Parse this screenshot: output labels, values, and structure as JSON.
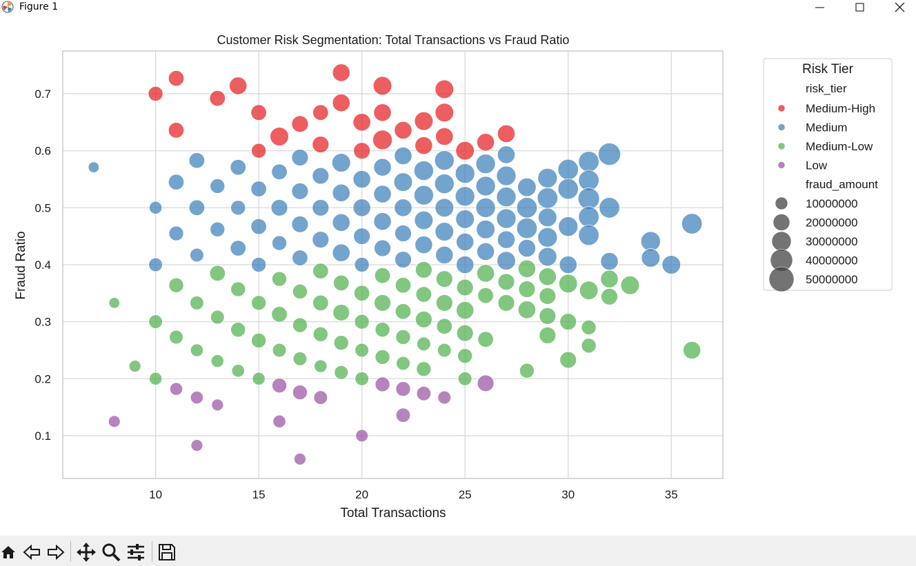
{
  "window": {
    "title": "Figure 1"
  },
  "toolbar": {
    "icons": [
      "home-icon",
      "back-icon",
      "forward-icon",
      "pan-icon",
      "zoom-icon",
      "configure-subplots-icon",
      "save-icon"
    ]
  },
  "chart_data": {
    "type": "scatter",
    "title": "Customer Risk Segmentation: Total Transactions vs Fraud Ratio",
    "xlabel": "Total Transactions",
    "ylabel": "Fraud Ratio",
    "xlim": [
      5.5,
      37.5
    ],
    "ylim": [
      0.025,
      0.775
    ],
    "xticks": [
      10,
      15,
      20,
      25,
      30,
      35
    ],
    "yticks": [
      0.1,
      0.2,
      0.3,
      0.4,
      0.5,
      0.6,
      0.7
    ],
    "grid": true,
    "legend": {
      "title": "Risk Tier",
      "placement": "outside-right",
      "hue_title": "risk_tier",
      "size_title": "fraud_amount",
      "size_entries": [
        "10000000",
        "20000000",
        "30000000",
        "40000000",
        "50000000"
      ]
    },
    "series": [
      {
        "name": "Medium-High",
        "color": "#e41a1c",
        "points": [
          [
            10,
            0.7,
            0.4
          ],
          [
            11,
            0.727,
            0.45
          ],
          [
            11,
            0.636,
            0.45
          ],
          [
            13,
            0.692,
            0.45
          ],
          [
            14,
            0.714,
            0.55
          ],
          [
            15,
            0.667,
            0.45
          ],
          [
            15,
            0.6,
            0.4
          ],
          [
            16,
            0.625,
            0.6
          ],
          [
            17,
            0.647,
            0.5
          ],
          [
            18,
            0.667,
            0.45
          ],
          [
            18,
            0.611,
            0.5
          ],
          [
            19,
            0.737,
            0.55
          ],
          [
            19,
            0.684,
            0.55
          ],
          [
            20,
            0.65,
            0.55
          ],
          [
            20,
            0.6,
            0.5
          ],
          [
            21,
            0.714,
            0.6
          ],
          [
            21,
            0.667,
            0.55
          ],
          [
            21,
            0.619,
            0.65
          ],
          [
            22,
            0.636,
            0.55
          ],
          [
            23,
            0.652,
            0.6
          ],
          [
            23,
            0.609,
            0.55
          ],
          [
            24,
            0.708,
            0.6
          ],
          [
            24,
            0.667,
            0.6
          ],
          [
            24,
            0.625,
            0.55
          ],
          [
            25,
            0.6,
            0.6
          ],
          [
            26,
            0.615,
            0.55
          ],
          [
            27,
            0.63,
            0.55
          ]
        ]
      },
      {
        "name": "Medium",
        "color": "#377eb8",
        "points": [
          [
            7,
            0.571,
            0.2
          ],
          [
            10,
            0.5,
            0.3
          ],
          [
            10,
            0.4,
            0.35
          ],
          [
            11,
            0.545,
            0.45
          ],
          [
            11,
            0.455,
            0.4
          ],
          [
            12,
            0.583,
            0.45
          ],
          [
            12,
            0.5,
            0.45
          ],
          [
            12,
            0.417,
            0.35
          ],
          [
            13,
            0.538,
            0.4
          ],
          [
            13,
            0.462,
            0.4
          ],
          [
            14,
            0.571,
            0.45
          ],
          [
            14,
            0.5,
            0.4
          ],
          [
            14,
            0.429,
            0.45
          ],
          [
            15,
            0.533,
            0.45
          ],
          [
            15,
            0.467,
            0.45
          ],
          [
            15,
            0.4,
            0.4
          ],
          [
            16,
            0.563,
            0.45
          ],
          [
            16,
            0.5,
            0.5
          ],
          [
            16,
            0.438,
            0.4
          ],
          [
            17,
            0.588,
            0.5
          ],
          [
            17,
            0.529,
            0.5
          ],
          [
            17,
            0.471,
            0.5
          ],
          [
            17,
            0.412,
            0.45
          ],
          [
            18,
            0.556,
            0.5
          ],
          [
            18,
            0.5,
            0.5
          ],
          [
            18,
            0.444,
            0.5
          ],
          [
            19,
            0.579,
            0.6
          ],
          [
            19,
            0.526,
            0.55
          ],
          [
            19,
            0.474,
            0.55
          ],
          [
            19,
            0.421,
            0.55
          ],
          [
            20,
            0.55,
            0.55
          ],
          [
            20,
            0.5,
            0.55
          ],
          [
            20,
            0.45,
            0.5
          ],
          [
            20,
            0.4,
            0.4
          ],
          [
            21,
            0.571,
            0.55
          ],
          [
            21,
            0.524,
            0.55
          ],
          [
            21,
            0.476,
            0.55
          ],
          [
            21,
            0.429,
            0.5
          ],
          [
            22,
            0.591,
            0.55
          ],
          [
            22,
            0.545,
            0.6
          ],
          [
            22,
            0.5,
            0.55
          ],
          [
            22,
            0.455,
            0.5
          ],
          [
            22,
            0.409,
            0.5
          ],
          [
            23,
            0.565,
            0.65
          ],
          [
            23,
            0.522,
            0.65
          ],
          [
            23,
            0.478,
            0.6
          ],
          [
            23,
            0.435,
            0.55
          ],
          [
            24,
            0.583,
            0.65
          ],
          [
            24,
            0.542,
            0.65
          ],
          [
            24,
            0.5,
            0.6
          ],
          [
            24,
            0.458,
            0.6
          ],
          [
            24,
            0.417,
            0.55
          ],
          [
            25,
            0.56,
            0.65
          ],
          [
            25,
            0.52,
            0.65
          ],
          [
            25,
            0.48,
            0.6
          ],
          [
            25,
            0.44,
            0.55
          ],
          [
            25,
            0.4,
            0.55
          ],
          [
            26,
            0.577,
            0.65
          ],
          [
            26,
            0.538,
            0.65
          ],
          [
            26,
            0.5,
            0.65
          ],
          [
            26,
            0.462,
            0.6
          ],
          [
            26,
            0.423,
            0.55
          ],
          [
            27,
            0.593,
            0.55
          ],
          [
            27,
            0.556,
            0.65
          ],
          [
            27,
            0.519,
            0.65
          ],
          [
            27,
            0.481,
            0.65
          ],
          [
            27,
            0.444,
            0.55
          ],
          [
            27,
            0.407,
            0.6
          ],
          [
            28,
            0.536,
            0.6
          ],
          [
            28,
            0.5,
            0.7
          ],
          [
            28,
            0.464,
            0.7
          ],
          [
            28,
            0.429,
            0.55
          ],
          [
            29,
            0.552,
            0.65
          ],
          [
            29,
            0.517,
            0.7
          ],
          [
            29,
            0.483,
            0.6
          ],
          [
            29,
            0.448,
            0.65
          ],
          [
            29,
            0.414,
            0.6
          ],
          [
            30,
            0.567,
            0.7
          ],
          [
            30,
            0.533,
            0.7
          ],
          [
            30,
            0.467,
            0.65
          ],
          [
            30,
            0.4,
            0.55
          ],
          [
            31,
            0.581,
            0.7
          ],
          [
            31,
            0.548,
            0.7
          ],
          [
            31,
            0.516,
            0.75
          ],
          [
            31,
            0.484,
            0.7
          ],
          [
            31,
            0.452,
            0.7
          ],
          [
            32,
            0.594,
            0.8
          ],
          [
            32,
            0.5,
            0.7
          ],
          [
            32,
            0.406,
            0.55
          ],
          [
            34,
            0.441,
            0.65
          ],
          [
            34,
            0.412,
            0.6
          ],
          [
            35,
            0.4,
            0.6
          ],
          [
            36,
            0.472,
            0.7
          ]
        ]
      },
      {
        "name": "Medium-Low",
        "color": "#4daf4a",
        "points": [
          [
            8,
            0.333,
            0.2
          ],
          [
            9,
            0.222,
            0.25
          ],
          [
            10,
            0.3,
            0.35
          ],
          [
            10,
            0.2,
            0.3
          ],
          [
            11,
            0.364,
            0.4
          ],
          [
            11,
            0.273,
            0.35
          ],
          [
            12,
            0.333,
            0.35
          ],
          [
            12,
            0.25,
            0.3
          ],
          [
            13,
            0.385,
            0.45
          ],
          [
            13,
            0.308,
            0.35
          ],
          [
            13,
            0.231,
            0.3
          ],
          [
            14,
            0.357,
            0.4
          ],
          [
            14,
            0.286,
            0.4
          ],
          [
            14,
            0.214,
            0.3
          ],
          [
            15,
            0.333,
            0.4
          ],
          [
            15,
            0.267,
            0.4
          ],
          [
            15,
            0.2,
            0.3
          ],
          [
            16,
            0.375,
            0.4
          ],
          [
            16,
            0.313,
            0.45
          ],
          [
            16,
            0.25,
            0.35
          ],
          [
            17,
            0.353,
            0.4
          ],
          [
            17,
            0.294,
            0.4
          ],
          [
            17,
            0.235,
            0.35
          ],
          [
            18,
            0.389,
            0.45
          ],
          [
            18,
            0.333,
            0.45
          ],
          [
            18,
            0.278,
            0.4
          ],
          [
            18,
            0.222,
            0.3
          ],
          [
            19,
            0.368,
            0.45
          ],
          [
            19,
            0.316,
            0.5
          ],
          [
            19,
            0.263,
            0.4
          ],
          [
            19,
            0.211,
            0.35
          ],
          [
            20,
            0.35,
            0.45
          ],
          [
            20,
            0.3,
            0.4
          ],
          [
            20,
            0.25,
            0.35
          ],
          [
            20,
            0.2,
            0.35
          ],
          [
            21,
            0.381,
            0.45
          ],
          [
            21,
            0.333,
            0.5
          ],
          [
            21,
            0.286,
            0.4
          ],
          [
            21,
            0.238,
            0.4
          ],
          [
            22,
            0.364,
            0.45
          ],
          [
            22,
            0.318,
            0.45
          ],
          [
            22,
            0.273,
            0.4
          ],
          [
            22,
            0.227,
            0.35
          ],
          [
            23,
            0.391,
            0.5
          ],
          [
            23,
            0.348,
            0.45
          ],
          [
            23,
            0.304,
            0.5
          ],
          [
            23,
            0.261,
            0.35
          ],
          [
            23,
            0.217,
            0.4
          ],
          [
            24,
            0.375,
            0.5
          ],
          [
            24,
            0.333,
            0.5
          ],
          [
            24,
            0.292,
            0.45
          ],
          [
            24,
            0.25,
            0.35
          ],
          [
            25,
            0.36,
            0.5
          ],
          [
            25,
            0.32,
            0.55
          ],
          [
            25,
            0.28,
            0.5
          ],
          [
            25,
            0.24,
            0.4
          ],
          [
            25,
            0.2,
            0.35
          ],
          [
            26,
            0.385,
            0.55
          ],
          [
            26,
            0.346,
            0.45
          ],
          [
            26,
            0.269,
            0.45
          ],
          [
            27,
            0.37,
            0.5
          ],
          [
            27,
            0.333,
            0.5
          ],
          [
            28,
            0.393,
            0.55
          ],
          [
            28,
            0.357,
            0.5
          ],
          [
            28,
            0.321,
            0.55
          ],
          [
            28,
            0.214,
            0.4
          ],
          [
            29,
            0.379,
            0.55
          ],
          [
            29,
            0.345,
            0.5
          ],
          [
            29,
            0.31,
            0.5
          ],
          [
            29,
            0.276,
            0.5
          ],
          [
            30,
            0.367,
            0.6
          ],
          [
            30,
            0.3,
            0.5
          ],
          [
            30,
            0.233,
            0.5
          ],
          [
            31,
            0.355,
            0.6
          ],
          [
            31,
            0.29,
            0.4
          ],
          [
            31,
            0.258,
            0.4
          ],
          [
            32,
            0.375,
            0.55
          ],
          [
            32,
            0.344,
            0.5
          ],
          [
            33,
            0.364,
            0.6
          ],
          [
            36,
            0.25,
            0.55
          ]
        ]
      },
      {
        "name": "Low",
        "color": "#984ea3",
        "points": [
          [
            8,
            0.125,
            0.25
          ],
          [
            11,
            0.182,
            0.3
          ],
          [
            12,
            0.167,
            0.3
          ],
          [
            12,
            0.083,
            0.25
          ],
          [
            13,
            0.154,
            0.25
          ],
          [
            16,
            0.188,
            0.4
          ],
          [
            16,
            0.125,
            0.3
          ],
          [
            17,
            0.176,
            0.4
          ],
          [
            17,
            0.059,
            0.25
          ],
          [
            18,
            0.167,
            0.35
          ],
          [
            20,
            0.1,
            0.28
          ],
          [
            21,
            0.19,
            0.4
          ],
          [
            22,
            0.182,
            0.4
          ],
          [
            22,
            0.136,
            0.38
          ],
          [
            23,
            0.174,
            0.38
          ],
          [
            24,
            0.167,
            0.32
          ],
          [
            26,
            0.192,
            0.5
          ]
        ]
      }
    ]
  }
}
